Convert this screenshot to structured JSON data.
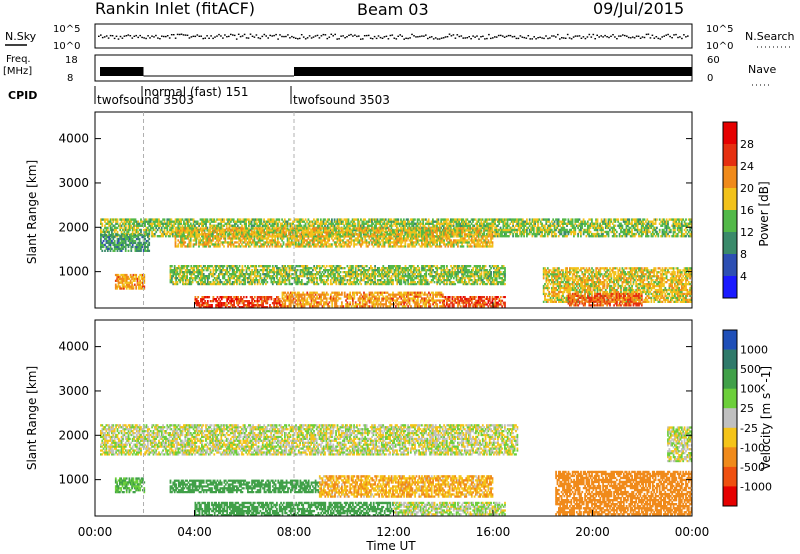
{
  "header": {
    "station": "Rankin Inlet (fitACF)",
    "beam": "Beam 03",
    "date": "09/Jul/2015"
  },
  "summary_panels": {
    "nsky": {
      "label": "N.Sky",
      "ticks": [
        "10^5",
        "10^0"
      ]
    },
    "freq": {
      "label_line1": "Freq.",
      "label_line2": "[MHz]",
      "ticks": [
        "18",
        "8"
      ]
    },
    "nsearch": {
      "label": "N.Search",
      "ticks": [
        "10^5",
        "10^0"
      ]
    },
    "nave": {
      "label": "Nave",
      "ticks": [
        "60",
        "0"
      ]
    },
    "cpid": {
      "label": "CPID",
      "segments": [
        {
          "label": "twofsound 3503",
          "start_h": 0.0
        },
        {
          "label": "normal (fast) 151",
          "start_h": 1.95
        },
        {
          "label": "twofsound 3503",
          "start_h": 8.0
        }
      ]
    }
  },
  "chart_data": [
    {
      "type": "heatmap",
      "title": "Power",
      "ylabel": "Slant Range [km]",
      "xlabel": "",
      "x_range_h": [
        0,
        24
      ],
      "ylim": [
        180,
        4600
      ],
      "yticks": [
        1000,
        2000,
        3000,
        4000
      ],
      "colorbar": {
        "label": "Power [dB]",
        "ticks": [
          "4",
          "8",
          "12",
          "16",
          "20",
          "24",
          "28"
        ],
        "colors": [
          "#1a1aff",
          "#2d4fb3",
          "#3a8a6a",
          "#52b848",
          "#f2c21a",
          "#f08a1a",
          "#e63010",
          "#e60000"
        ]
      },
      "bands": [
        {
          "x0": 0.2,
          "x1": 24,
          "y0": 1780,
          "y1": 2200,
          "value": 15
        },
        {
          "x0": 0.2,
          "x1": 2.2,
          "y0": 1450,
          "y1": 1850,
          "value": 11
        },
        {
          "x0": 3.2,
          "x1": 16.0,
          "y0": 1550,
          "y1": 2000,
          "value": 18
        },
        {
          "x0": 0.8,
          "x1": 2.0,
          "y0": 600,
          "y1": 950,
          "value": 21
        },
        {
          "x0": 3.0,
          "x1": 16.5,
          "y0": 700,
          "y1": 1150,
          "value": 15
        },
        {
          "x0": 4.0,
          "x1": 7.5,
          "y0": 180,
          "y1": 450,
          "value": 26
        },
        {
          "x0": 7.5,
          "x1": 14.0,
          "y0": 200,
          "y1": 550,
          "value": 21
        },
        {
          "x0": 14.0,
          "x1": 16.5,
          "y0": 200,
          "y1": 450,
          "value": 25
        },
        {
          "x0": 18.0,
          "x1": 24,
          "y0": 300,
          "y1": 1100,
          "value": 18
        },
        {
          "x0": 19.0,
          "x1": 22.0,
          "y0": 220,
          "y1": 520,
          "value": 24
        }
      ]
    },
    {
      "type": "heatmap",
      "title": "Velocity",
      "ylabel": "Slant Range [km]",
      "xlabel": "Time UT",
      "x_range_h": [
        0,
        24
      ],
      "xticks": [
        "00:00",
        "04:00",
        "08:00",
        "12:00",
        "16:00",
        "20:00",
        "00:00"
      ],
      "ylim": [
        180,
        4600
      ],
      "yticks": [
        1000,
        2000,
        3000,
        4000
      ],
      "colorbar": {
        "label": "Velocity [m s^-1]",
        "ticks": [
          "1000",
          "500",
          "100",
          "25",
          "-25",
          "-100",
          "-500",
          "-1000"
        ],
        "colors": [
          "#1f4fb8",
          "#2f7a6a",
          "#40a048",
          "#6ccf3a",
          "#c0c0c0",
          "#f5c418",
          "#f08a1a",
          "#ef5010",
          "#e60000"
        ]
      },
      "bands": [
        {
          "x0": 0.2,
          "x1": 17.0,
          "y0": 1550,
          "y1": 2250,
          "value": 0
        },
        {
          "x0": 23.0,
          "x1": 24,
          "y0": 1400,
          "y1": 2200,
          "value": 0
        },
        {
          "x0": 0.8,
          "x1": 2.0,
          "y0": 700,
          "y1": 1050,
          "value": 120
        },
        {
          "x0": 3.0,
          "x1": 9.0,
          "y0": 700,
          "y1": 1000,
          "value": 300
        },
        {
          "x0": 9.0,
          "x1": 16.0,
          "y0": 600,
          "y1": 1100,
          "value": -90
        },
        {
          "x0": 4.0,
          "x1": 12.0,
          "y0": 180,
          "y1": 500,
          "value": 400
        },
        {
          "x0": 12.0,
          "x1": 16.5,
          "y0": 200,
          "y1": 500,
          "value": 20
        },
        {
          "x0": 18.5,
          "x1": 24,
          "y0": 200,
          "y1": 1200,
          "value": -300
        }
      ]
    }
  ]
}
